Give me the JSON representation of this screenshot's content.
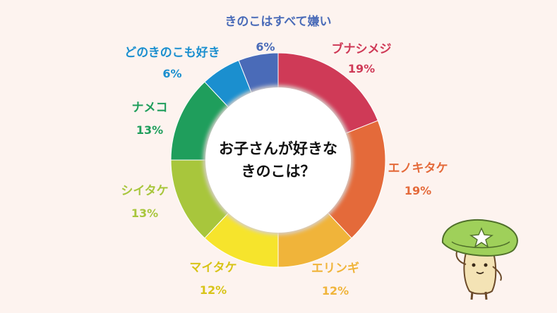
{
  "chart_data": {
    "type": "pie",
    "title": "お子さんが好きなきのこは？",
    "title_lines": [
      "お子さんが好きな",
      "きのこは？"
    ],
    "categories": [
      "ブナシメジ",
      "エノキタケ",
      "エリンギ",
      "マイタケ",
      "シイタケ",
      "ナメコ",
      "どのきのこも好き",
      "きのこはすべて嫌い"
    ],
    "values": [
      19,
      19,
      12,
      12,
      13,
      13,
      6,
      6
    ],
    "labels": [
      "19%",
      "19%",
      "12%",
      "12%",
      "13%",
      "13%",
      "6%",
      "6%"
    ],
    "colors": [
      "#cf3a57",
      "#e46a3a",
      "#f0b43a",
      "#f6e42c",
      "#a8c63c",
      "#1f9e5c",
      "#1b8fcf",
      "#4a6bb8"
    ],
    "style": "donut"
  }
}
